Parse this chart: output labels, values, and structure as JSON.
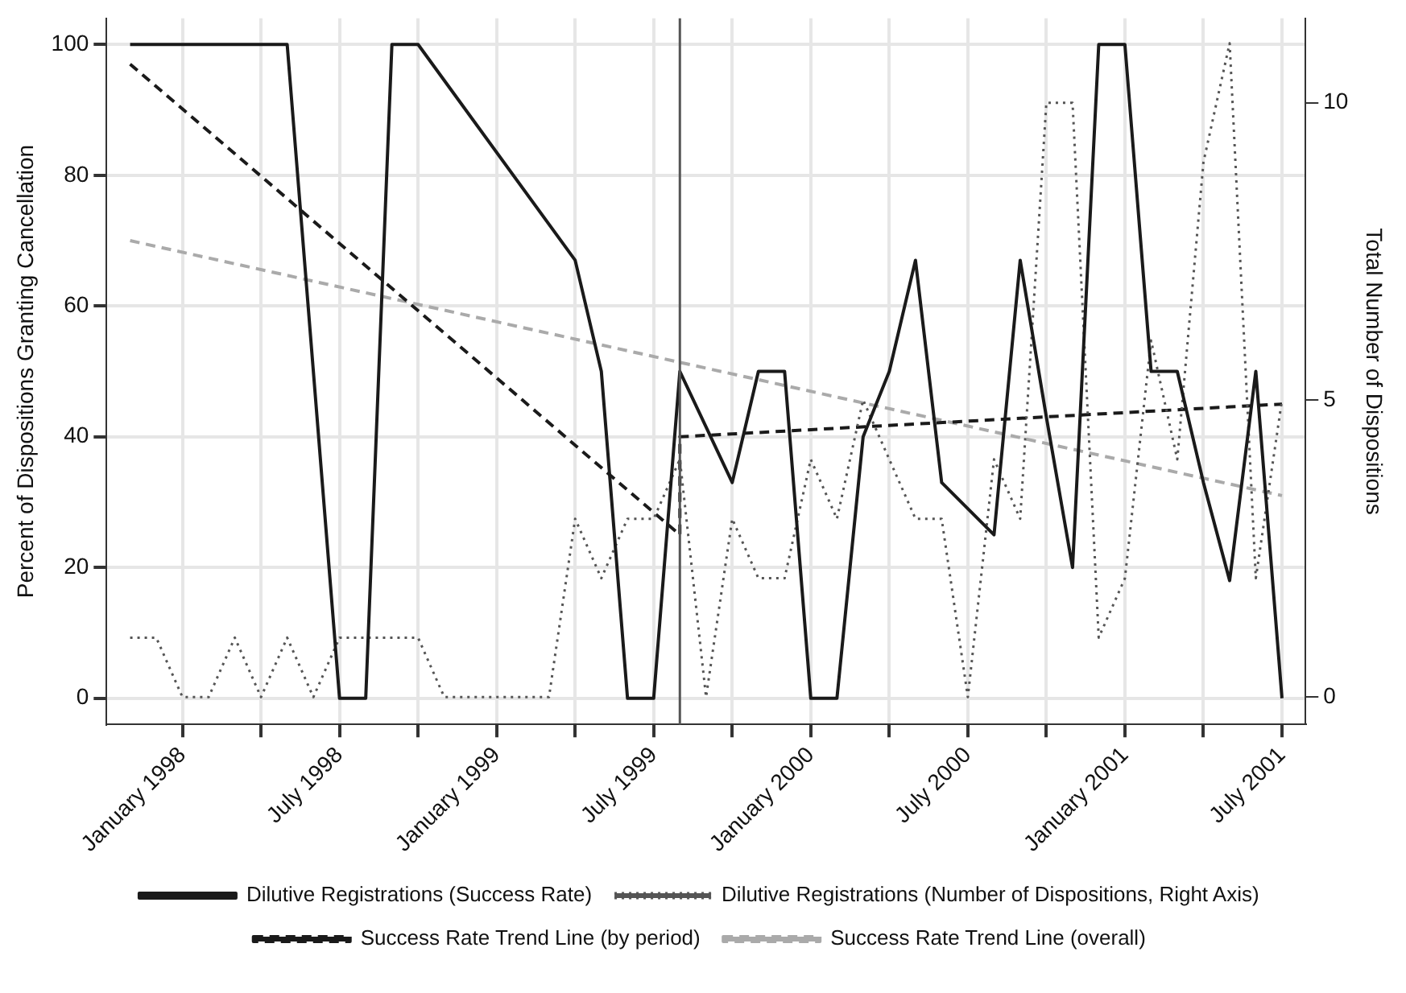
{
  "chart_data": {
    "type": "line",
    "ylabel": "Percent of Dispositions Granting Cancellation",
    "y2label": "Total Number of Dispositions",
    "x": [
      "1997-11",
      "1997-12",
      "1998-01",
      "1998-02",
      "1998-03",
      "1998-04",
      "1998-05",
      "1998-06",
      "1998-07",
      "1998-08",
      "1998-09",
      "1998-10",
      "1998-11",
      "1998-12",
      "1999-01",
      "1999-02",
      "1999-03",
      "1999-04",
      "1999-05",
      "1999-06",
      "1999-07",
      "1999-08",
      "1999-09",
      "1999-10",
      "1999-11",
      "1999-12",
      "2000-01",
      "2000-02",
      "2000-03",
      "2000-04",
      "2000-05",
      "2000-06",
      "2000-07",
      "2000-08",
      "2000-09",
      "2000-10",
      "2000-11",
      "2000-12",
      "2001-01",
      "2001-02",
      "2001-03",
      "2001-04",
      "2001-05",
      "2001-06",
      "2001-07"
    ],
    "series": [
      {
        "name": "Dilutive Registrations (Success Rate)",
        "color": "#1a1a1a",
        "line_style": "solid",
        "values": [
          100,
          100,
          null,
          null,
          100,
          null,
          100,
          null,
          0,
          0,
          100,
          100,
          null,
          null,
          null,
          null,
          null,
          67,
          50,
          0,
          0,
          50,
          null,
          33,
          50,
          50,
          0,
          0,
          40,
          50,
          67,
          33,
          null,
          25,
          67,
          43,
          20,
          100,
          100,
          50,
          50,
          33,
          18,
          50,
          0
        ]
      },
      {
        "name": "Dilutive Registrations (Number of Dispositions, Right Axis)",
        "color": "#555555",
        "line_style": "dotted",
        "axis": "y2",
        "values": [
          1,
          1,
          0,
          0,
          1,
          0,
          1,
          0,
          1,
          1,
          1,
          1,
          0,
          0,
          0,
          0,
          0,
          3,
          2,
          3,
          3,
          4,
          0,
          3,
          2,
          2,
          4,
          3,
          5,
          4,
          3,
          3,
          0,
          4,
          3,
          10,
          10,
          1,
          2,
          6,
          4,
          9,
          11,
          2,
          5
        ]
      },
      {
        "name": "Success Rate Trend Line (by period)",
        "color": "#1a1a1a",
        "line_style": "dashed",
        "x": [
          "1997-11",
          "1999-08",
          "1999-08",
          "2001-07"
        ],
        "values": [
          97,
          25,
          40,
          45
        ]
      },
      {
        "name": "Success Rate Trend Line (overall)",
        "color": "#aaaaaa",
        "line_style": "dashed",
        "x": [
          "1997-11",
          "2001-07"
        ],
        "values": [
          70,
          31
        ]
      }
    ],
    "xlim": [
      "1997-10-04",
      "2001-07-28"
    ],
    "xticks": [
      {
        "value": "1998-01",
        "label": "January 1998"
      },
      {
        "value": "1998-04",
        "label": null
      },
      {
        "value": "1998-07",
        "label": "July 1998"
      },
      {
        "value": "1998-10",
        "label": null
      },
      {
        "value": "1999-01",
        "label": "January 1999"
      },
      {
        "value": "1999-04",
        "label": null
      },
      {
        "value": "1999-07",
        "label": "July 1999"
      },
      {
        "value": "1999-10",
        "label": null
      },
      {
        "value": "2000-01",
        "label": "January 2000"
      },
      {
        "value": "2000-04",
        "label": null
      },
      {
        "value": "2000-07",
        "label": "July 2000"
      },
      {
        "value": "2000-10",
        "label": null
      },
      {
        "value": "2001-01",
        "label": "January 2001"
      },
      {
        "value": "2001-04",
        "label": null
      },
      {
        "value": "2001-07",
        "label": "July 2001"
      }
    ],
    "ylim": [
      -4,
      104
    ],
    "yticks": [
      0,
      20,
      40,
      60,
      80,
      100
    ],
    "y2lim": [
      -0.46,
      11.42
    ],
    "y2ticks": [
      0,
      5,
      10
    ],
    "ref_lines": [
      {
        "axis": "x",
        "value": "1999-08",
        "color": "#555555"
      }
    ],
    "grid": true,
    "legend": "bottom",
    "marker": "none"
  }
}
